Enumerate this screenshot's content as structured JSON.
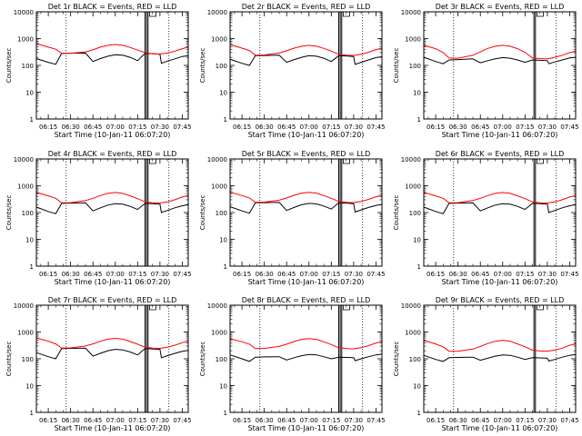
{
  "colors": {
    "events": "#000000",
    "lld": "#ff0000",
    "axes": "#000000",
    "background": "#ffffff"
  },
  "chart_data": [
    {
      "type": "line",
      "title": "Det 1r BLACK = Events, RED = LLD",
      "xlabel": "Start Time (10-Jan-11 06:07:20)",
      "ylabel": "Counts/sec",
      "yscale": "log",
      "xlim": [
        "06:07",
        "07:49"
      ],
      "ylim": [
        1,
        10000
      ],
      "x_ticks": [
        "06:15",
        "06:30",
        "06:45",
        "07:00",
        "07:15",
        "07:30",
        "07:45"
      ],
      "y_ticks": [
        "1",
        "10",
        "100",
        "1000",
        "10000"
      ],
      "dotted_vlines": [
        "06:27",
        "07:36"
      ],
      "solid_vlines": [
        "07:20",
        "07:21",
        "07:22"
      ],
      "box_marker_at": "07:23",
      "x": [
        "06:07",
        "06:15",
        "06:20",
        "06:24",
        "06:30",
        "06:40",
        "06:45",
        "06:50",
        "06:55",
        "07:00",
        "07:05",
        "07:10",
        "07:15",
        "07:20",
        "07:25",
        "07:30",
        "07:31",
        "07:35",
        "07:40",
        "07:45",
        "07:49"
      ],
      "series": [
        {
          "name": "Events",
          "color": "black",
          "values": [
            180,
            130,
            110,
            280,
            285,
            290,
            140,
            180,
            220,
            250,
            240,
            200,
            150,
            280,
            275,
            260,
            120,
            145,
            175,
            215,
            230
          ]
        },
        {
          "name": "LLD",
          "color": "red",
          "values": [
            650,
            480,
            400,
            280,
            285,
            320,
            380,
            480,
            560,
            600,
            560,
            470,
            370,
            300,
            270,
            265,
            270,
            290,
            340,
            420,
            480
          ]
        }
      ]
    },
    {
      "type": "line",
      "title": "Det 2r BLACK = Events, RED = LLD",
      "xlabel": "Start Time (10-Jan-11 06:07:20)",
      "ylabel": "Counts/sec",
      "yscale": "log",
      "xlim": [
        "06:07",
        "07:49"
      ],
      "ylim": [
        1,
        10000
      ],
      "x_ticks": [
        "06:15",
        "06:30",
        "06:45",
        "07:00",
        "07:15",
        "07:30",
        "07:45"
      ],
      "y_ticks": [
        "1",
        "10",
        "100",
        "1000",
        "10000"
      ],
      "dotted_vlines": [
        "06:27",
        "07:36"
      ],
      "solid_vlines": [
        "07:20",
        "07:21",
        "07:22"
      ],
      "box_marker_at": "07:23",
      "x": [
        "06:07",
        "06:15",
        "06:20",
        "06:24",
        "06:30",
        "06:40",
        "06:45",
        "06:50",
        "06:55",
        "07:00",
        "07:05",
        "07:10",
        "07:15",
        "07:20",
        "07:25",
        "07:30",
        "07:31",
        "07:35",
        "07:40",
        "07:45",
        "07:49"
      ],
      "series": [
        {
          "name": "Events",
          "color": "black",
          "values": [
            170,
            120,
            100,
            230,
            235,
            240,
            130,
            165,
            200,
            230,
            220,
            185,
            140,
            230,
            225,
            215,
            110,
            130,
            160,
            195,
            210
          ]
        },
        {
          "name": "LLD",
          "color": "red",
          "values": [
            600,
            440,
            360,
            240,
            245,
            290,
            350,
            440,
            520,
            560,
            520,
            430,
            340,
            260,
            240,
            235,
            240,
            260,
            310,
            390,
            440
          ]
        }
      ]
    },
    {
      "type": "line",
      "title": "Det 3r BLACK = Events, RED = LLD",
      "xlabel": "Start Time (10-Jan-11 06:07:20)",
      "ylabel": "Counts/sec",
      "yscale": "log",
      "xlim": [
        "06:07",
        "07:49"
      ],
      "ylim": [
        1,
        10000
      ],
      "x_ticks": [
        "06:15",
        "06:30",
        "06:45",
        "07:00",
        "07:15",
        "07:30",
        "07:45"
      ],
      "y_ticks": [
        "1",
        "10",
        "100",
        "1000",
        "10000"
      ],
      "dotted_vlines": [
        "06:27",
        "07:36"
      ],
      "solid_vlines": [
        "07:21",
        "07:22"
      ],
      "box_marker_at": "07:23",
      "x": [
        "06:07",
        "06:15",
        "06:20",
        "06:24",
        "06:30",
        "06:40",
        "06:45",
        "06:50",
        "06:55",
        "07:00",
        "07:05",
        "07:10",
        "07:15",
        "07:20",
        "07:25",
        "07:30",
        "07:31",
        "07:35",
        "07:40",
        "07:45",
        "07:49"
      ],
      "series": [
        {
          "name": "Events",
          "color": "black",
          "values": [
            200,
            140,
            115,
            160,
            165,
            175,
            125,
            150,
            175,
            195,
            185,
            160,
            130,
            160,
            155,
            150,
            115,
            135,
            160,
            190,
            200
          ]
        },
        {
          "name": "LLD",
          "color": "red",
          "values": [
            560,
            420,
            300,
            190,
            185,
            240,
            320,
            430,
            520,
            560,
            520,
            420,
            310,
            190,
            180,
            175,
            180,
            200,
            240,
            300,
            340
          ]
        }
      ]
    },
    {
      "type": "line",
      "title": "Det 4r BLACK = Events, RED = LLD",
      "xlabel": "Start Time (10-Jan-11 06:07:20)",
      "ylabel": "Counts/sec",
      "yscale": "log",
      "xlim": [
        "06:07",
        "07:49"
      ],
      "ylim": [
        1,
        10000
      ],
      "x_ticks": [
        "06:15",
        "06:30",
        "06:45",
        "07:00",
        "07:15",
        "07:30",
        "07:45"
      ],
      "y_ticks": [
        "1",
        "10",
        "100",
        "1000",
        "10000"
      ],
      "dotted_vlines": [
        "06:27",
        "07:36"
      ],
      "solid_vlines": [
        "07:20",
        "07:21",
        "07:22"
      ],
      "box_marker_at": "07:23",
      "x": [
        "06:07",
        "06:15",
        "06:20",
        "06:24",
        "06:30",
        "06:40",
        "06:45",
        "06:50",
        "06:55",
        "07:00",
        "07:05",
        "07:10",
        "07:15",
        "07:20",
        "07:25",
        "07:30",
        "07:31",
        "07:35",
        "07:40",
        "07:45",
        "07:49"
      ],
      "series": [
        {
          "name": "Events",
          "color": "black",
          "values": [
            160,
            110,
            90,
            220,
            225,
            230,
            115,
            150,
            190,
            215,
            205,
            170,
            130,
            220,
            215,
            205,
            100,
            120,
            150,
            180,
            195
          ]
        },
        {
          "name": "LLD",
          "color": "red",
          "values": [
            560,
            420,
            340,
            230,
            235,
            280,
            340,
            430,
            520,
            560,
            520,
            420,
            330,
            250,
            230,
            225,
            230,
            250,
            300,
            380,
            430
          ]
        }
      ]
    },
    {
      "type": "line",
      "title": "Det 5r BLACK = Events, RED = LLD",
      "xlabel": "Start Time (10-Jan-11 06:07:20)",
      "ylabel": "Counts/sec",
      "yscale": "log",
      "xlim": [
        "06:07",
        "07:49"
      ],
      "ylim": [
        1,
        10000
      ],
      "x_ticks": [
        "06:15",
        "06:30",
        "06:45",
        "07:00",
        "07:15",
        "07:30",
        "07:45"
      ],
      "y_ticks": [
        "1",
        "10",
        "100",
        "1000",
        "10000"
      ],
      "dotted_vlines": [
        "06:27",
        "07:36"
      ],
      "solid_vlines": [
        "07:20",
        "07:21",
        "07:22"
      ],
      "box_marker_at": "07:23",
      "x": [
        "06:07",
        "06:15",
        "06:20",
        "06:24",
        "06:30",
        "06:40",
        "06:45",
        "06:50",
        "06:55",
        "07:00",
        "07:05",
        "07:10",
        "07:15",
        "07:20",
        "07:25",
        "07:30",
        "07:31",
        "07:35",
        "07:40",
        "07:45",
        "07:49"
      ],
      "series": [
        {
          "name": "Events",
          "color": "black",
          "values": [
            165,
            115,
            95,
            230,
            235,
            240,
            120,
            155,
            195,
            220,
            210,
            175,
            135,
            230,
            225,
            215,
            105,
            125,
            155,
            185,
            200
          ]
        },
        {
          "name": "LLD",
          "color": "red",
          "values": [
            580,
            430,
            350,
            240,
            245,
            290,
            350,
            440,
            530,
            570,
            530,
            430,
            340,
            260,
            240,
            235,
            240,
            260,
            310,
            390,
            440
          ]
        }
      ]
    },
    {
      "type": "line",
      "title": "Det 6r BLACK = Events, RED = LLD",
      "xlabel": "Start Time (10-Jan-11 06:07:20)",
      "ylabel": "Counts/sec",
      "yscale": "log",
      "xlim": [
        "06:07",
        "07:49"
      ],
      "ylim": [
        1,
        10000
      ],
      "x_ticks": [
        "06:15",
        "06:30",
        "06:45",
        "07:00",
        "07:15",
        "07:30",
        "07:45"
      ],
      "y_ticks": [
        "1",
        "10",
        "100",
        "1000",
        "10000"
      ],
      "dotted_vlines": [
        "06:27",
        "07:36"
      ],
      "solid_vlines": [
        "07:21",
        "07:22"
      ],
      "box_marker_at": "07:23",
      "x": [
        "06:07",
        "06:15",
        "06:20",
        "06:24",
        "06:30",
        "06:40",
        "06:45",
        "06:50",
        "06:55",
        "07:00",
        "07:05",
        "07:10",
        "07:15",
        "07:20",
        "07:25",
        "07:30",
        "07:31",
        "07:35",
        "07:40",
        "07:45",
        "07:49"
      ],
      "series": [
        {
          "name": "Events",
          "color": "black",
          "values": [
            160,
            110,
            90,
            220,
            225,
            230,
            115,
            150,
            190,
            215,
            205,
            170,
            130,
            220,
            215,
            205,
            100,
            120,
            150,
            180,
            195
          ]
        },
        {
          "name": "LLD",
          "color": "red",
          "values": [
            560,
            420,
            340,
            230,
            235,
            280,
            340,
            430,
            520,
            560,
            520,
            420,
            330,
            250,
            230,
            225,
            230,
            250,
            300,
            380,
            430
          ]
        }
      ]
    },
    {
      "type": "line",
      "title": "Det 7r BLACK = Events, RED = LLD",
      "xlabel": "Start Time (10-Jan-11 06:07:20)",
      "ylabel": "Counts/sec",
      "yscale": "log",
      "xlim": [
        "06:07",
        "07:49"
      ],
      "ylim": [
        1,
        10000
      ],
      "x_ticks": [
        "06:15",
        "06:30",
        "06:45",
        "07:00",
        "07:15",
        "07:30",
        "07:45"
      ],
      "y_ticks": [
        "1",
        "10",
        "100",
        "1000",
        "10000"
      ],
      "dotted_vlines": [
        "06:27",
        "07:36"
      ],
      "solid_vlines": [
        "07:20",
        "07:21",
        "07:22"
      ],
      "box_marker_at": "07:23",
      "x": [
        "06:07",
        "06:15",
        "06:20",
        "06:24",
        "06:30",
        "06:40",
        "06:45",
        "06:50",
        "06:55",
        "07:00",
        "07:05",
        "07:10",
        "07:15",
        "07:20",
        "07:25",
        "07:30",
        "07:31",
        "07:35",
        "07:40",
        "07:45",
        "07:49"
      ],
      "series": [
        {
          "name": "Events",
          "color": "black",
          "values": [
            170,
            120,
            100,
            240,
            245,
            250,
            125,
            160,
            200,
            225,
            215,
            180,
            140,
            240,
            235,
            225,
            110,
            130,
            160,
            190,
            205
          ]
        },
        {
          "name": "LLD",
          "color": "red",
          "values": [
            600,
            450,
            360,
            250,
            255,
            300,
            360,
            450,
            540,
            580,
            540,
            440,
            350,
            270,
            250,
            245,
            250,
            270,
            320,
            400,
            450
          ]
        }
      ]
    },
    {
      "type": "line",
      "title": "Det 8r BLACK = Events, RED = LLD",
      "xlabel": "Start Time (10-Jan-11 06:07:20)",
      "ylabel": "Counts/sec",
      "yscale": "log",
      "xlim": [
        "06:07",
        "07:49"
      ],
      "ylim": [
        1,
        10000
      ],
      "x_ticks": [
        "06:15",
        "06:30",
        "06:45",
        "07:00",
        "07:15",
        "07:30",
        "07:45"
      ],
      "y_ticks": [
        "1",
        "10",
        "100",
        "1000",
        "10000"
      ],
      "dotted_vlines": [
        "06:27",
        "07:36"
      ],
      "solid_vlines": [
        "07:20",
        "07:21",
        "07:22"
      ],
      "box_marker_at": "07:23",
      "x": [
        "06:07",
        "06:15",
        "06:20",
        "06:24",
        "06:30",
        "06:40",
        "06:45",
        "06:50",
        "06:55",
        "07:00",
        "07:05",
        "07:10",
        "07:15",
        "07:20",
        "07:25",
        "07:30",
        "07:31",
        "07:35",
        "07:40",
        "07:45",
        "07:49"
      ],
      "series": [
        {
          "name": "Events",
          "color": "black",
          "values": [
            140,
            100,
            80,
            115,
            118,
            120,
            90,
            110,
            130,
            145,
            140,
            120,
            100,
            115,
            112,
            110,
            85,
            100,
            120,
            140,
            150
          ]
        },
        {
          "name": "LLD",
          "color": "red",
          "values": [
            560,
            430,
            350,
            240,
            245,
            290,
            350,
            440,
            530,
            570,
            530,
            430,
            340,
            260,
            240,
            235,
            240,
            260,
            310,
            390,
            440
          ]
        }
      ]
    },
    {
      "type": "line",
      "title": "Det 9r BLACK = Events, RED = LLD",
      "xlabel": "Start Time (10-Jan-11 06:07:20)",
      "ylabel": "Counts/sec",
      "yscale": "log",
      "xlim": [
        "06:07",
        "07:49"
      ],
      "ylim": [
        1,
        10000
      ],
      "x_ticks": [
        "06:15",
        "06:30",
        "06:45",
        "07:00",
        "07:15",
        "07:30",
        "07:45"
      ],
      "y_ticks": [
        "1",
        "10",
        "100",
        "1000",
        "10000"
      ],
      "dotted_vlines": [
        "06:27",
        "07:36"
      ],
      "solid_vlines": [
        "07:21",
        "07:22"
      ],
      "box_marker_at": "07:23",
      "x": [
        "06:07",
        "06:15",
        "06:20",
        "06:24",
        "06:30",
        "06:40",
        "06:45",
        "06:50",
        "06:55",
        "07:00",
        "07:05",
        "07:10",
        "07:15",
        "07:20",
        "07:25",
        "07:30",
        "07:31",
        "07:35",
        "07:40",
        "07:45",
        "07:49"
      ],
      "series": [
        {
          "name": "Events",
          "color": "black",
          "values": [
            135,
            95,
            80,
            110,
            112,
            115,
            88,
            105,
            125,
            140,
            135,
            115,
            95,
            110,
            108,
            105,
            82,
            95,
            115,
            135,
            145
          ]
        },
        {
          "name": "LLD",
          "color": "red",
          "values": [
            480,
            360,
            280,
            190,
            192,
            230,
            290,
            370,
            450,
            490,
            450,
            360,
            280,
            210,
            195,
            192,
            195,
            210,
            250,
            320,
            360
          ]
        }
      ]
    }
  ]
}
